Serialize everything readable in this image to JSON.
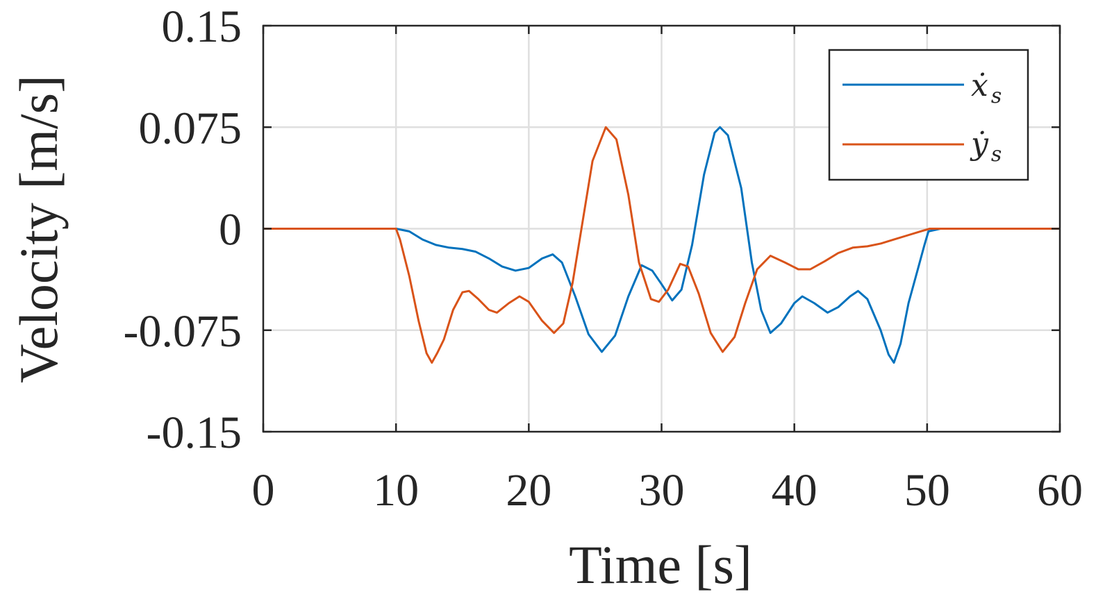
{
  "chart_data": {
    "type": "line",
    "xlabel": "Time [s]",
    "ylabel": "Velocity [m/s]",
    "xlim": [
      0,
      60
    ],
    "ylim": [
      -0.15,
      0.15
    ],
    "xticks": [
      0,
      10,
      20,
      30,
      40,
      50,
      60
    ],
    "xtick_labels": [
      "0",
      "10",
      "20",
      "30",
      "40",
      "50",
      "60"
    ],
    "yticks": [
      -0.15,
      -0.075,
      0,
      0.075,
      0.15
    ],
    "ytick_labels": [
      "-0.15",
      "-0.075",
      "0",
      "0.075",
      "0.15"
    ],
    "grid": true,
    "legend_position": "top-right",
    "colors": {
      "axes": "#262626",
      "grid": "#dfdfdf",
      "xs": "#0072BD",
      "ys": "#D95319"
    },
    "series": [
      {
        "name": "ẋ_s",
        "legend_base": "ẋ",
        "legend_sub": "s",
        "color": "#0072BD",
        "points": [
          [
            0,
            0
          ],
          [
            10,
            0
          ],
          [
            11,
            -0.002
          ],
          [
            12,
            -0.008
          ],
          [
            13,
            -0.012
          ],
          [
            14,
            -0.014
          ],
          [
            15,
            -0.015
          ],
          [
            16,
            -0.017
          ],
          [
            17,
            -0.022
          ],
          [
            18,
            -0.028
          ],
          [
            19,
            -0.031
          ],
          [
            20,
            -0.029
          ],
          [
            21,
            -0.022
          ],
          [
            21.8,
            -0.019
          ],
          [
            22.5,
            -0.025
          ],
          [
            23.5,
            -0.05
          ],
          [
            24.5,
            -0.078
          ],
          [
            25.5,
            -0.091
          ],
          [
            26.5,
            -0.079
          ],
          [
            27.5,
            -0.05
          ],
          [
            28.5,
            -0.027
          ],
          [
            29.3,
            -0.031
          ],
          [
            30,
            -0.041
          ],
          [
            30.8,
            -0.053
          ],
          [
            31.5,
            -0.045
          ],
          [
            32.3,
            -0.012
          ],
          [
            33.2,
            0.04
          ],
          [
            34,
            0.071
          ],
          [
            34.4,
            0.075
          ],
          [
            35,
            0.069
          ],
          [
            36,
            0.03
          ],
          [
            36.8,
            -0.025
          ],
          [
            37.5,
            -0.06
          ],
          [
            38.2,
            -0.077
          ],
          [
            39,
            -0.07
          ],
          [
            40,
            -0.055
          ],
          [
            40.6,
            -0.05
          ],
          [
            41.5,
            -0.055
          ],
          [
            42.5,
            -0.062
          ],
          [
            43.3,
            -0.058
          ],
          [
            44.2,
            -0.05
          ],
          [
            44.8,
            -0.046
          ],
          [
            45.5,
            -0.052
          ],
          [
            46.5,
            -0.075
          ],
          [
            47.1,
            -0.093
          ],
          [
            47.5,
            -0.099
          ],
          [
            48,
            -0.085
          ],
          [
            48.6,
            -0.055
          ],
          [
            49.3,
            -0.03
          ],
          [
            49.8,
            -0.012
          ],
          [
            50.1,
            -0.002
          ],
          [
            51,
            0
          ],
          [
            60,
            0
          ]
        ]
      },
      {
        "name": "ẏ_s",
        "legend_base": "ẏ",
        "legend_sub": "s",
        "color": "#D95319",
        "points": [
          [
            0,
            0
          ],
          [
            10,
            0
          ],
          [
            10.3,
            -0.008
          ],
          [
            11,
            -0.035
          ],
          [
            11.7,
            -0.068
          ],
          [
            12.3,
            -0.092
          ],
          [
            12.7,
            -0.099
          ],
          [
            13.1,
            -0.092
          ],
          [
            13.6,
            -0.082
          ],
          [
            14.3,
            -0.06
          ],
          [
            15,
            -0.047
          ],
          [
            15.5,
            -0.046
          ],
          [
            16.2,
            -0.052
          ],
          [
            17,
            -0.06
          ],
          [
            17.6,
            -0.062
          ],
          [
            18.5,
            -0.055
          ],
          [
            19.3,
            -0.05
          ],
          [
            20,
            -0.054
          ],
          [
            21,
            -0.068
          ],
          [
            21.9,
            -0.077
          ],
          [
            22.6,
            -0.07
          ],
          [
            23.3,
            -0.04
          ],
          [
            24,
            0.002
          ],
          [
            24.8,
            0.05
          ],
          [
            25.8,
            0.075
          ],
          [
            26.6,
            0.066
          ],
          [
            27.5,
            0.025
          ],
          [
            28.3,
            -0.025
          ],
          [
            29.2,
            -0.052
          ],
          [
            29.8,
            -0.054
          ],
          [
            30.5,
            -0.045
          ],
          [
            31.4,
            -0.026
          ],
          [
            32,
            -0.028
          ],
          [
            32.8,
            -0.048
          ],
          [
            33.7,
            -0.077
          ],
          [
            34.6,
            -0.091
          ],
          [
            35.5,
            -0.08
          ],
          [
            36.3,
            -0.055
          ],
          [
            37.2,
            -0.03
          ],
          [
            38.2,
            -0.02
          ],
          [
            39.3,
            -0.025
          ],
          [
            40.3,
            -0.03
          ],
          [
            41.2,
            -0.03
          ],
          [
            42.3,
            -0.024
          ],
          [
            43.3,
            -0.018
          ],
          [
            44.4,
            -0.014
          ],
          [
            45.5,
            -0.013
          ],
          [
            46.5,
            -0.011
          ],
          [
            47.5,
            -0.008
          ],
          [
            48.5,
            -0.005
          ],
          [
            49.5,
            -0.002
          ],
          [
            50.2,
            0
          ],
          [
            60,
            0
          ]
        ]
      }
    ]
  }
}
